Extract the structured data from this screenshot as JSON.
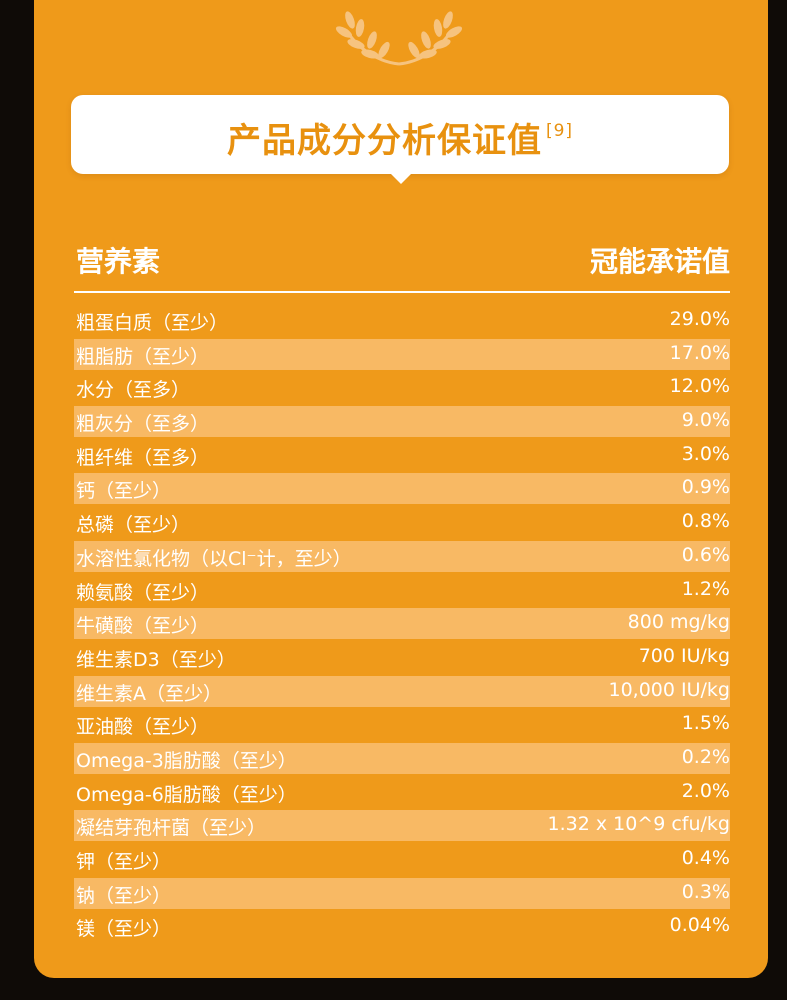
{
  "title": "产品成分分析保证值",
  "title_ref": "[9]",
  "table": {
    "header_left": "营养素",
    "header_right": "冠能承诺值",
    "rows": [
      {
        "name": "粗蛋白质（至少）",
        "value": "29.0%"
      },
      {
        "name": "粗脂肪（至少）",
        "value": "17.0%"
      },
      {
        "name": "水分（至多）",
        "value": "12.0%"
      },
      {
        "name": "粗灰分（至多）",
        "value": "9.0%"
      },
      {
        "name": "粗纤维（至多）",
        "value": "3.0%"
      },
      {
        "name": "钙（至少）",
        "value": "0.9%"
      },
      {
        "name": "总磷（至少）",
        "value": "0.8%"
      },
      {
        "name": "水溶性氯化物（以Cl⁻计，至少）",
        "value": "0.6%"
      },
      {
        "name": "赖氨酸（至少）",
        "value": "1.2%"
      },
      {
        "name": "牛磺酸（至少）",
        "value": "800 mg/kg"
      },
      {
        "name": "维生素D3（至少）",
        "value": "700 IU/kg"
      },
      {
        "name": "维生素A（至少）",
        "value": "10,000 IU/kg"
      },
      {
        "name": "亚油酸（至少）",
        "value": "1.5%"
      },
      {
        "name": "Omega-3脂肪酸（至少）",
        "value": "0.2%"
      },
      {
        "name": "Omega-6脂肪酸（至少）",
        "value": "2.0%"
      },
      {
        "name": "凝结芽孢杆菌（至少）",
        "value": "1.32 x 10^9 cfu/kg"
      },
      {
        "name": "钾（至少）",
        "value": "0.4%"
      },
      {
        "name": "钠（至少）",
        "value": "0.3%"
      },
      {
        "name": "镁（至少）",
        "value": "0.04%"
      }
    ]
  },
  "colors": {
    "background": "#ef9a1a",
    "stripe": "#f8b964",
    "title": "#e8910f"
  }
}
